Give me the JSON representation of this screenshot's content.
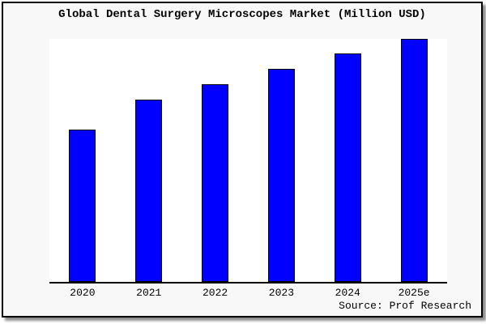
{
  "chart_data": {
    "type": "bar",
    "title": "Global Dental Surgery Microscopes Market (Million USD)",
    "categories": [
      "2020",
      "2021",
      "2022",
      "2023",
      "2024",
      "2025e"
    ],
    "values": [
      188,
      225,
      244,
      263,
      282,
      300
    ],
    "unit": "Million USD",
    "xlabel": "",
    "ylabel": "",
    "ylim": [
      0,
      300
    ],
    "y_axis": "unlabeled (values estimated from bar heights)",
    "grid": false,
    "legend": false,
    "bar_color": "#0000ff",
    "bar_border_color": "#000000",
    "plot_bg": "#ffffff",
    "figure_bg": "#f8f8f8",
    "frame_border_color": "#000000"
  },
  "source": {
    "label": "Source: Prof Research"
  }
}
